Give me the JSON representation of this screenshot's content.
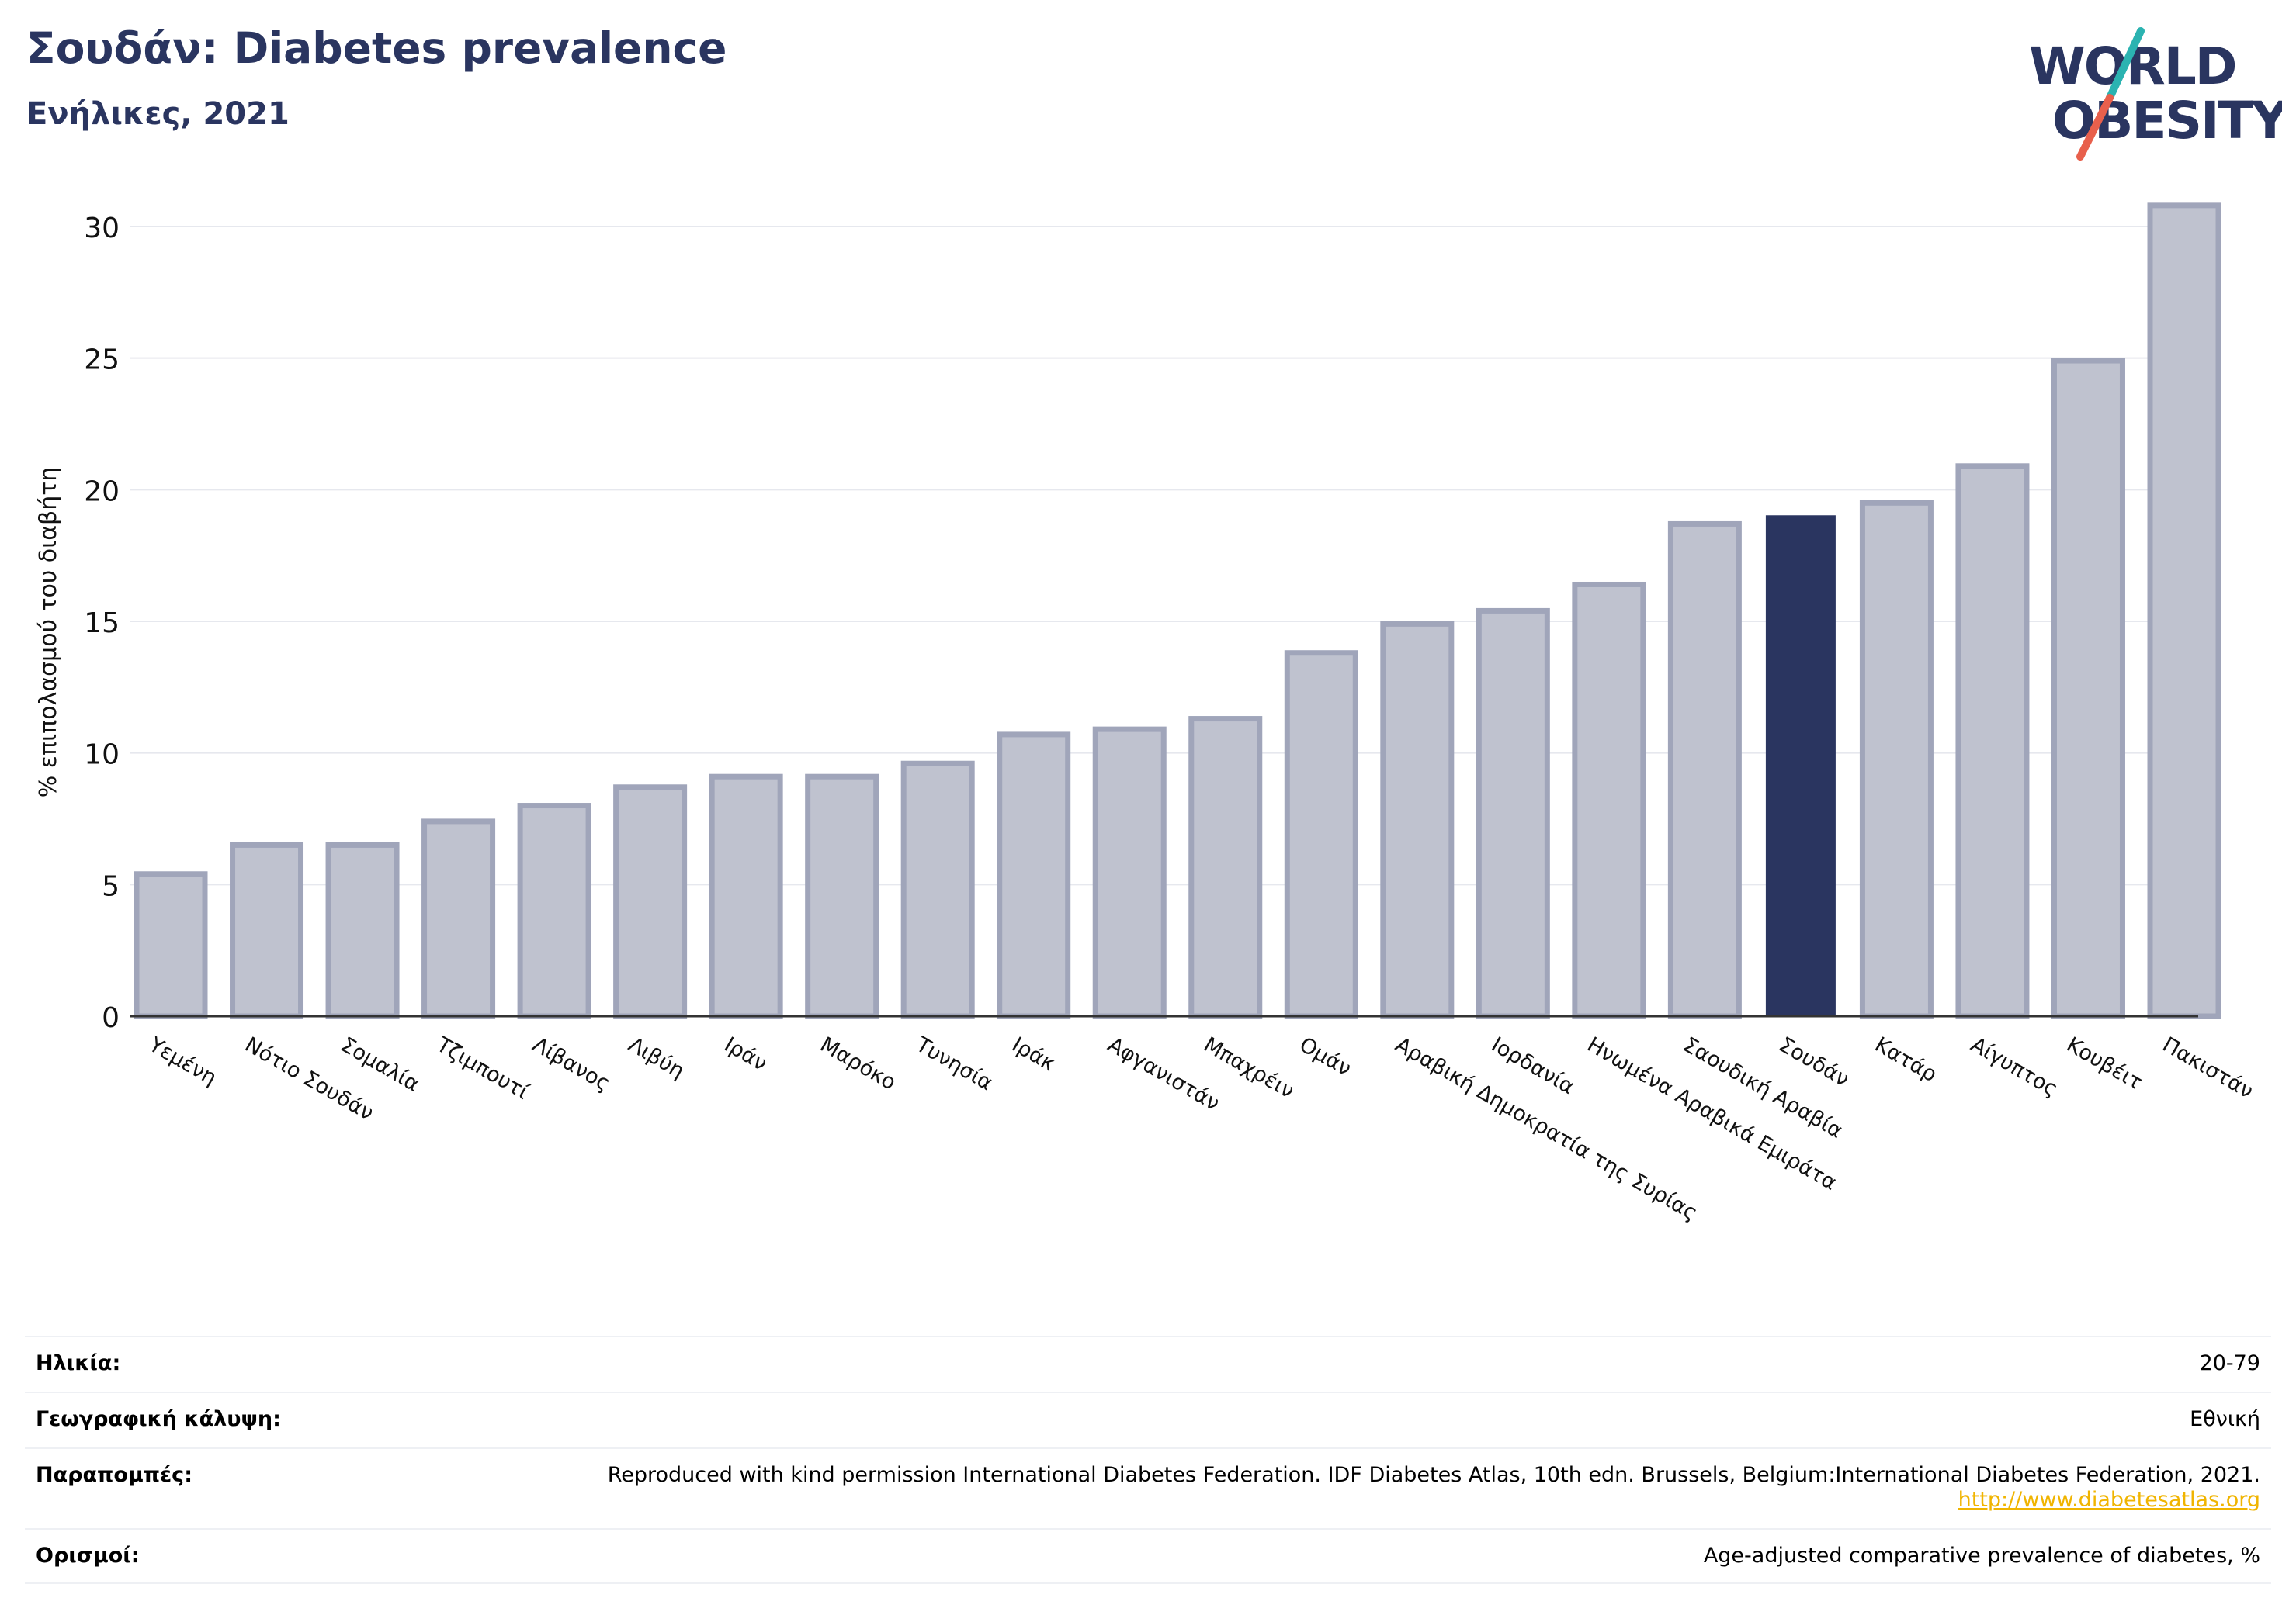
{
  "header": {
    "title": "Σουδάν: Diabetes prevalence",
    "subtitle": "Ενήλικες, 2021"
  },
  "logo": {
    "line1": "WORLD",
    "line2": "OBESITY",
    "icon": "world-obesity-slash-logo",
    "colors": {
      "text": "#2a3560",
      "slash_top": "#2bb3b1",
      "slash_bottom": "#e8604c"
    }
  },
  "chart_data": {
    "type": "bar",
    "ylabel": "% επιπολασμού του διαβήτη",
    "ylim": [
      0,
      31
    ],
    "yticks": [
      "0",
      "5",
      "10",
      "15",
      "20",
      "25",
      "30"
    ],
    "grid": true,
    "highlight": "Σουδάν",
    "colors": {
      "bar": "#bfc2cf",
      "bar_border": "#a0a5ba",
      "highlight": "#2a3560"
    },
    "categories": [
      "Υεμένη",
      "Νότιο Σουδάν",
      "Σομαλία",
      "Τζιμπουτί",
      "Λίβανος",
      "Λιβύη",
      "Ιράν",
      "Μαρόκο",
      "Τυνησία",
      "Ιράκ",
      "Αφγανιστάν",
      "Μπαχρέιν",
      "Ομάν",
      "Αραβική Δημοκρατία της Συρίας",
      "Ιορδανία",
      "Ηνωμένα Αραβικά Εμιράτα",
      "Σαουδική Αραβία",
      "Σουδάν",
      "Κατάρ",
      "Αίγυπτος",
      "Κουβέιτ",
      "Πακιστάν"
    ],
    "values": [
      5.4,
      6.5,
      6.5,
      7.4,
      8.0,
      8.7,
      9.1,
      9.1,
      9.6,
      10.7,
      10.9,
      11.3,
      13.8,
      14.9,
      15.4,
      16.4,
      18.7,
      19.0,
      19.5,
      20.9,
      24.9,
      30.8
    ]
  },
  "meta": {
    "age_label": "Ηλικία:",
    "age_value": "20-79",
    "coverage_label": "Γεωγραφική κάλυψη:",
    "coverage_value": "Εθνική",
    "refs_label": "Παραπομπές:",
    "refs_value": "Reproduced with kind permission International Diabetes Federation.  IDF Diabetes Atlas, 10th edn. Brussels, Belgium:International Diabetes Federation, 2021.",
    "refs_link": "http://www.diabetesatlas.org",
    "defs_label": "Ορισμοί:",
    "defs_value": "Age-adjusted comparative prevalence of diabetes, %"
  }
}
